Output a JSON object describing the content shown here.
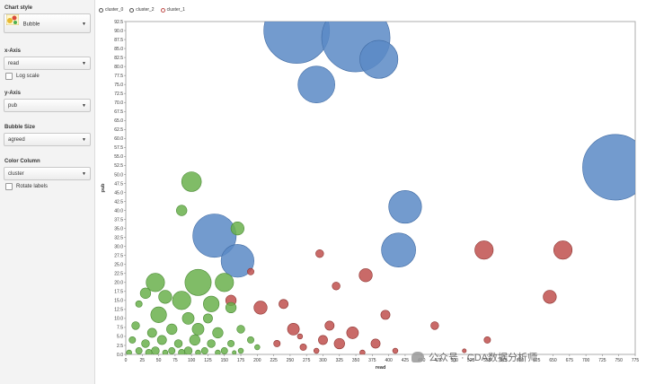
{
  "sidebar": {
    "chart_style_label": "Chart style",
    "chart_style_value": "Bubble",
    "x_axis_label": "x-Axis",
    "x_axis_value": "read",
    "log_scale_label": "Log scale",
    "y_axis_label": "y-Axis",
    "y_axis_value": "pub",
    "bubble_size_label": "Bubble Size",
    "bubble_size_value": "agreed",
    "color_column_label": "Color Column",
    "color_column_value": "cluster",
    "rotate_labels_label": "Rotate labels"
  },
  "watermark": "公众号 · CDA数据分析师",
  "colors": {
    "cluster_0": "#5b8ac6",
    "cluster_2": "#c0504d",
    "cluster_1": "#6ab04c"
  },
  "chart_data": {
    "type": "scatter",
    "xlabel": "read",
    "ylabel": "pub",
    "xlim": [
      0,
      775
    ],
    "ylim": [
      0,
      92.5
    ],
    "x_ticks": [
      "0",
      "25",
      "50",
      "75",
      "100",
      "125",
      "150",
      "175",
      "200",
      "225",
      "250",
      "275",
      "300",
      "325",
      "350",
      "375",
      "400",
      "425",
      "450",
      "475",
      "500",
      "525",
      "550",
      "575",
      "600",
      "625",
      "650",
      "675",
      "700",
      "725",
      "750",
      "775"
    ],
    "y_ticks": [
      "0.0",
      "2.5",
      "5.0",
      "7.5",
      "10.0",
      "12.5",
      "15.0",
      "17.5",
      "20.0",
      "22.5",
      "25.0",
      "27.5",
      "30.0",
      "32.5",
      "35.0",
      "37.5",
      "40.0",
      "42.5",
      "45.0",
      "47.5",
      "50.0",
      "52.5",
      "55.0",
      "57.5",
      "60.0",
      "62.5",
      "65.0",
      "67.5",
      "70.0",
      "72.5",
      "75.0",
      "77.5",
      "80.0",
      "82.5",
      "85.0",
      "87.5",
      "90.0",
      "92.5"
    ],
    "legend": [
      "cluster_0",
      "cluster_2",
      "cluster_1"
    ],
    "series": [
      {
        "name": "cluster_0",
        "color": "#5b8ac6",
        "points": [
          [
            260,
            90,
            50
          ],
          [
            350,
            88,
            52
          ],
          [
            290,
            75,
            28
          ],
          [
            385,
            82,
            29
          ],
          [
            745,
            52,
            50
          ],
          [
            425,
            41,
            25
          ],
          [
            415,
            29,
            26
          ],
          [
            135,
            33,
            33
          ],
          [
            170,
            26,
            25
          ]
        ]
      },
      {
        "name": "cluster_2",
        "color": "#c0504d",
        "points": [
          [
            665,
            29,
            14
          ],
          [
            545,
            29,
            14
          ],
          [
            365,
            22,
            10
          ],
          [
            320,
            19,
            6
          ],
          [
            295,
            28,
            6
          ],
          [
            190,
            23,
            5
          ],
          [
            645,
            16,
            10
          ],
          [
            395,
            11,
            7
          ],
          [
            470,
            8,
            6
          ],
          [
            205,
            13,
            10
          ],
          [
            160,
            15,
            8
          ],
          [
            240,
            14,
            7
          ],
          [
            310,
            8,
            7
          ],
          [
            345,
            6,
            9
          ],
          [
            255,
            7,
            9
          ],
          [
            300,
            4,
            7
          ],
          [
            325,
            3,
            8
          ],
          [
            380,
            3,
            7
          ],
          [
            230,
            3,
            5
          ],
          [
            265,
            5,
            4
          ],
          [
            270,
            2,
            5
          ],
          [
            410,
            1,
            4
          ],
          [
            550,
            4,
            5
          ],
          [
            515,
            1,
            3
          ],
          [
            290,
            1,
            4
          ],
          [
            360,
            0.5,
            4
          ]
        ]
      },
      {
        "name": "cluster_1",
        "color": "#6ab04c",
        "points": [
          [
            100,
            48,
            15
          ],
          [
            85,
            40,
            8
          ],
          [
            170,
            35,
            10
          ],
          [
            45,
            20,
            14
          ],
          [
            110,
            20,
            20
          ],
          [
            150,
            20,
            14
          ],
          [
            30,
            17,
            8
          ],
          [
            60,
            16,
            10
          ],
          [
            85,
            15,
            14
          ],
          [
            130,
            14,
            12
          ],
          [
            20,
            14,
            5
          ],
          [
            50,
            11,
            12
          ],
          [
            95,
            10,
            9
          ],
          [
            125,
            10,
            7
          ],
          [
            160,
            13,
            8
          ],
          [
            15,
            8,
            6
          ],
          [
            40,
            6,
            7
          ],
          [
            70,
            7,
            8
          ],
          [
            110,
            7,
            9
          ],
          [
            140,
            6,
            8
          ],
          [
            175,
            7,
            6
          ],
          [
            10,
            4,
            5
          ],
          [
            30,
            3,
            6
          ],
          [
            55,
            4,
            7
          ],
          [
            80,
            3,
            6
          ],
          [
            105,
            4,
            8
          ],
          [
            130,
            3,
            6
          ],
          [
            160,
            3,
            5
          ],
          [
            190,
            4,
            5
          ],
          [
            20,
            1,
            5
          ],
          [
            45,
            1,
            6
          ],
          [
            70,
            1,
            5
          ],
          [
            95,
            1,
            6
          ],
          [
            120,
            1,
            5
          ],
          [
            150,
            1,
            5
          ],
          [
            175,
            1,
            4
          ],
          [
            200,
            2,
            4
          ],
          [
            5,
            0.5,
            4
          ],
          [
            35,
            0.5,
            5
          ],
          [
            60,
            0.5,
            4
          ],
          [
            85,
            0.5,
            5
          ],
          [
            110,
            0.5,
            4
          ],
          [
            140,
            0.5,
            4
          ],
          [
            165,
            0.5,
            3
          ]
        ]
      }
    ]
  }
}
